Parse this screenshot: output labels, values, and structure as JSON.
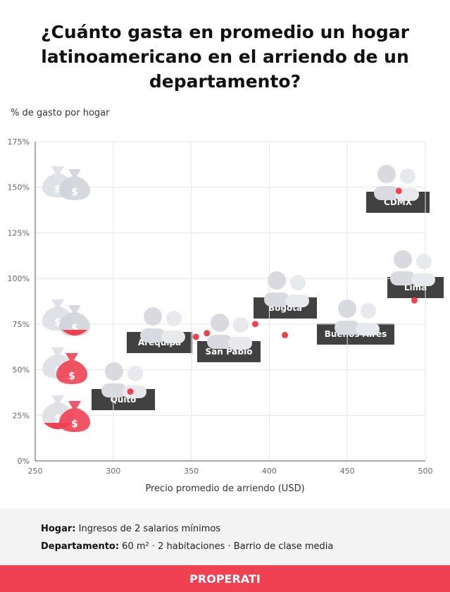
{
  "title": "¿Cuánto gasta en promedio un hogar latinoamericano en el arriendo de un departamento?",
  "chart_data": {
    "type": "scatter",
    "title": "¿Cuánto gasta en promedio un hogar latinoamericano en el arriendo de un departamento?",
    "xlabel": "Precio promedio de arriendo (USD)",
    "ylabel": "% de gasto por hogar",
    "xlim": [
      250,
      500
    ],
    "ylim": [
      0,
      175
    ],
    "xticks": [
      "250",
      "300",
      "350",
      "400",
      "450",
      "500"
    ],
    "yticks": [
      "0%",
      "25%",
      "50%",
      "75%",
      "100%",
      "125%",
      "150%",
      "175%"
    ],
    "grid": true,
    "point_color": "#f04153",
    "points": [
      {
        "label": "Quito",
        "x": 311,
        "y": 38
      },
      {
        "label": "Arequipa",
        "x": 353,
        "y": 68
      },
      {
        "label": "San Pablo",
        "x": 360,
        "y": 70
      },
      {
        "label": "Bogotá",
        "x": 391,
        "y": 75
      },
      {
        "label": "Buenos Aires",
        "x": 410,
        "y": 69
      },
      {
        "label": "Lima",
        "x": 493,
        "y": 88
      },
      {
        "label": "CDMX",
        "x": 483,
        "y": 148
      }
    ]
  },
  "footer": {
    "hogar_label": "Hogar:",
    "hogar_value": " Ingresos de 2 salarios mínimos",
    "depto_label": "Departamento:",
    "depto_value": " 60 m² · 2 habitaciones · Barrio de clase media"
  },
  "brand": "PROPERATI",
  "colors": {
    "accent": "#f04153",
    "label_bg": "#414141",
    "footer_bg": "#f3f3f3",
    "icons": "#d9dadf"
  }
}
